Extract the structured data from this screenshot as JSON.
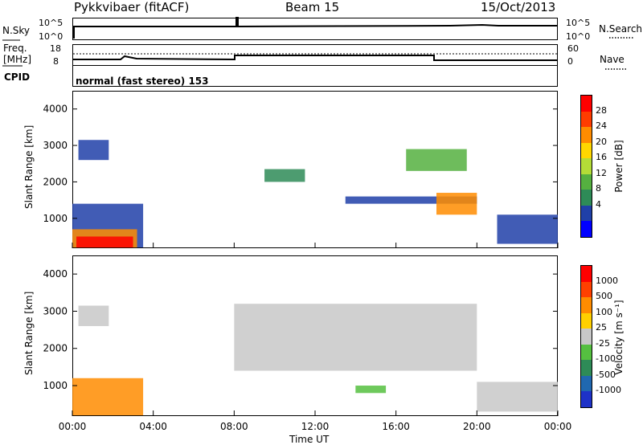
{
  "header": {
    "title": "Pykkvibaer (fitACF)",
    "beam": "Beam 15",
    "date": "15/Oct/2013"
  },
  "nsky_panel": {
    "left_label": "N.Sky",
    "right_label": "N.Search",
    "left_ticks": [
      "10^5",
      "10^0"
    ],
    "right_ticks": [
      "10^5",
      "10^0"
    ]
  },
  "freq_panel": {
    "left_label_1": "Freq.",
    "left_label_2": "[MHz]",
    "right_label": "Nave",
    "left_ticks": [
      "18",
      "8"
    ],
    "right_ticks": [
      "60",
      "0"
    ]
  },
  "cpid": {
    "label": "CPID",
    "value": "normal (fast stereo) 153"
  },
  "chart_data": [
    {
      "type": "heatmap",
      "name": "Power",
      "ylabel": "Slant Range [km]",
      "xlabel": "",
      "yticks": [
        "1000",
        "2000",
        "3000",
        "4000"
      ],
      "ylim": [
        180,
        4500
      ],
      "colorbar_label": "Power [dB]",
      "colorbar_ticks": [
        "28",
        "24",
        "20",
        "16",
        "12",
        "8",
        "4"
      ],
      "colorbar_colors": [
        "#0000ff",
        "#2040a8",
        "#2e8b57",
        "#55b040",
        "#b4dc37",
        "#ffd700",
        "#ff8c00",
        "#ff3c00",
        "#ff0000"
      ],
      "bands": [
        {
          "x_start": 0.0,
          "x_end": 3.5,
          "y_bottom": 200,
          "y_top": 1400,
          "color": "#2040a8"
        },
        {
          "x_start": 0.0,
          "x_end": 3.2,
          "y_bottom": 200,
          "y_top": 700,
          "color": "#ff8c00"
        },
        {
          "x_start": 0.2,
          "x_end": 3.0,
          "y_bottom": 200,
          "y_top": 500,
          "color": "#ff0000"
        },
        {
          "x_start": 0.3,
          "x_end": 1.8,
          "y_bottom": 2600,
          "y_top": 3150,
          "color": "#2040a8"
        },
        {
          "x_start": 9.5,
          "x_end": 11.5,
          "y_bottom": 2000,
          "y_top": 2350,
          "color": "#2e8b57"
        },
        {
          "x_start": 13.5,
          "x_end": 20.0,
          "y_bottom": 1400,
          "y_top": 1600,
          "color": "#2040a8"
        },
        {
          "x_start": 16.5,
          "x_end": 19.5,
          "y_bottom": 2300,
          "y_top": 2900,
          "color": "#55b040"
        },
        {
          "x_start": 18.0,
          "x_end": 20.0,
          "y_bottom": 1100,
          "y_top": 1700,
          "color": "#ff8c00"
        },
        {
          "x_start": 21.0,
          "x_end": 24.0,
          "y_bottom": 300,
          "y_top": 1100,
          "color": "#2040a8"
        }
      ]
    },
    {
      "type": "heatmap",
      "name": "Velocity",
      "ylabel": "Slant Range [km]",
      "xlabel": "Time UT",
      "yticks": [
        "1000",
        "2000",
        "3000",
        "4000"
      ],
      "xticks": [
        "00:00",
        "04:00",
        "08:00",
        "12:00",
        "16:00",
        "20:00",
        "00:00"
      ],
      "xlim_hours": [
        0,
        24
      ],
      "ylim": [
        180,
        4500
      ],
      "colorbar_label": "Velocity [m s⁻¹]",
      "colorbar_ticks": [
        "1000",
        "500",
        "100",
        "25",
        "-25",
        "-100",
        "-500",
        "-1000"
      ],
      "colorbar_colors": [
        "#1e32c8",
        "#2068b0",
        "#2e8b57",
        "#55c040",
        "#c8c8c8",
        "#ffd000",
        "#ff8c00",
        "#ff4000",
        "#ff0000"
      ],
      "bands": [
        {
          "x_start": 0.0,
          "x_end": 3.5,
          "y_bottom": 200,
          "y_top": 1200,
          "color": "#ff8c00"
        },
        {
          "x_start": 0.3,
          "x_end": 1.8,
          "y_bottom": 2600,
          "y_top": 3150,
          "color": "#c8c8c8"
        },
        {
          "x_start": 8.0,
          "x_end": 20.0,
          "y_bottom": 1400,
          "y_top": 3200,
          "color": "#c8c8c8"
        },
        {
          "x_start": 14.0,
          "x_end": 15.5,
          "y_bottom": 800,
          "y_top": 1000,
          "color": "#55c040"
        },
        {
          "x_start": 20.0,
          "x_end": 24.0,
          "y_bottom": 300,
          "y_top": 1100,
          "color": "#c8c8c8"
        }
      ]
    }
  ]
}
